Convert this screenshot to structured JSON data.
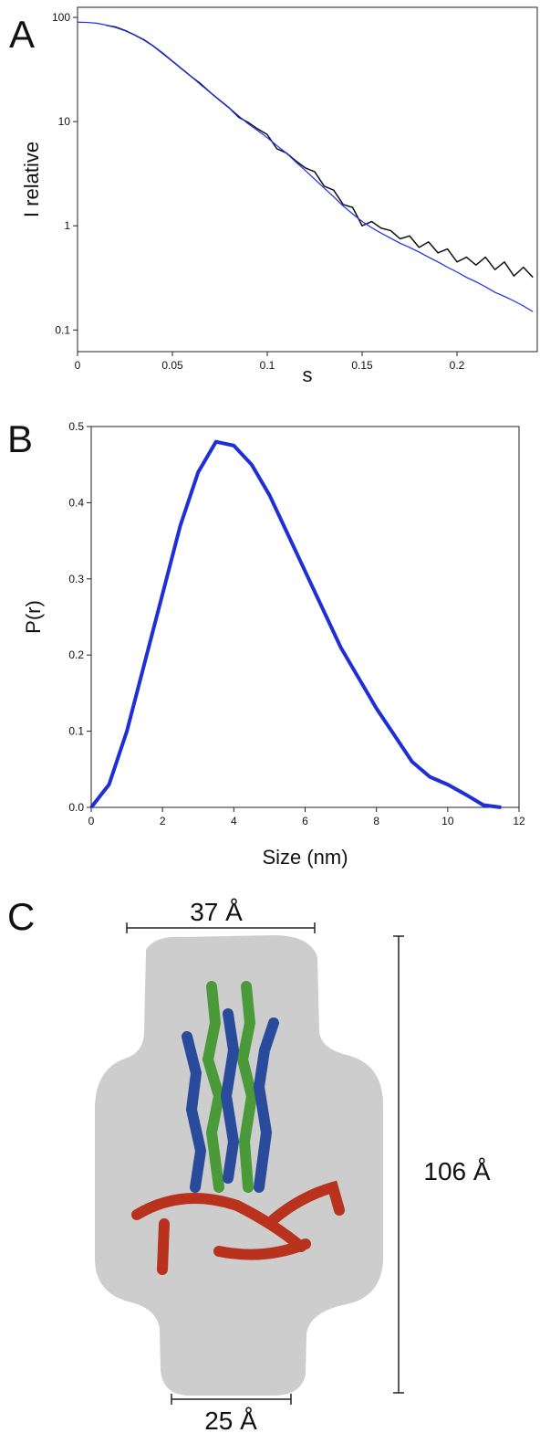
{
  "chart_data": [
    {
      "type": "line",
      "x_label": "s",
      "y_label": "I relative",
      "log_y": true,
      "xlim": [
        0,
        0.2423
      ],
      "ylim": [
        0.062,
        125
      ],
      "xticks": [
        0,
        0.05,
        0.1,
        0.15,
        0.2
      ],
      "yticks": [
        0.1,
        1,
        10,
        100
      ],
      "x": [
        0,
        0.005,
        0.01,
        0.015,
        0.02,
        0.025,
        0.03,
        0.035,
        0.04,
        0.045,
        0.05,
        0.055,
        0.06,
        0.065,
        0.07,
        0.075,
        0.08,
        0.085,
        0.09,
        0.095,
        0.1,
        0.105,
        0.11,
        0.115,
        0.12,
        0.125,
        0.13,
        0.135,
        0.14,
        0.145,
        0.15,
        0.155,
        0.16,
        0.165,
        0.17,
        0.175,
        0.18,
        0.185,
        0.19,
        0.195,
        0.2,
        0.205,
        0.21,
        0.215,
        0.22,
        0.225,
        0.23,
        0.235,
        0.24
      ],
      "series": [
        {
          "color": "#111111",
          "values": [
            null,
            null,
            null,
            84,
            81,
            75,
            68,
            61,
            53,
            45,
            38,
            32,
            27,
            23,
            19,
            16,
            13.5,
            11,
            9.8,
            8.5,
            7.5,
            5.5,
            5,
            4.2,
            3.6,
            3.3,
            2.4,
            2.2,
            1.6,
            1.5,
            1.0,
            1.1,
            0.95,
            0.9,
            0.75,
            0.8,
            0.62,
            0.7,
            0.55,
            0.6,
            0.45,
            0.5,
            0.42,
            0.5,
            0.38,
            0.45,
            0.33,
            0.4,
            0.32
          ]
        },
        {
          "color": "#1a2cf0",
          "values": [
            90,
            89.5,
            88,
            84.5,
            80,
            74.5,
            68,
            60.5,
            53,
            45.5,
            38,
            32,
            27,
            22.5,
            19,
            16,
            13.5,
            11.3,
            9.5,
            8.2,
            7,
            5.9,
            5,
            4.1,
            3.4,
            2.8,
            2.3,
            1.9,
            1.55,
            1.3,
            1.1,
            0.96,
            0.85,
            0.76,
            0.68,
            0.62,
            0.56,
            0.5,
            0.45,
            0.4,
            0.36,
            0.32,
            0.29,
            0.26,
            0.23,
            0.21,
            0.19,
            0.17,
            0.15
          ]
        }
      ]
    },
    {
      "type": "line",
      "x_label": "Size (nm)",
      "y_label": "P(r)",
      "xlim": [
        0,
        12
      ],
      "ylim": [
        0,
        0.5
      ],
      "xticks": [
        0,
        2,
        4,
        6,
        8,
        10,
        12
      ],
      "yticks": [
        {
          "value": 0,
          "label": "0.0"
        },
        0.1,
        0.2,
        0.3,
        0.4,
        0.5
      ],
      "x": [
        0,
        0.5,
        1,
        1.5,
        2,
        2.5,
        3,
        3.5,
        4,
        4.5,
        5,
        5.5,
        6,
        6.5,
        7,
        7.5,
        8,
        8.5,
        9,
        9.5,
        10,
        10.5,
        11,
        11.5
      ],
      "series": [
        {
          "color": "#1f2fd6",
          "values": [
            0,
            0.03,
            0.1,
            0.19,
            0.28,
            0.37,
            0.44,
            0.48,
            0.475,
            0.45,
            0.41,
            0.36,
            0.31,
            0.26,
            0.21,
            0.17,
            0.13,
            0.095,
            0.06,
            0.04,
            0.03,
            0.017,
            0.003,
            0
          ]
        }
      ]
    }
  ],
  "figure": {
    "panel_labels": [
      "A",
      "B",
      "C"
    ],
    "model": {
      "top_width": "37 Å",
      "height": "106 Å",
      "bottom_width": "25 Å"
    }
  }
}
